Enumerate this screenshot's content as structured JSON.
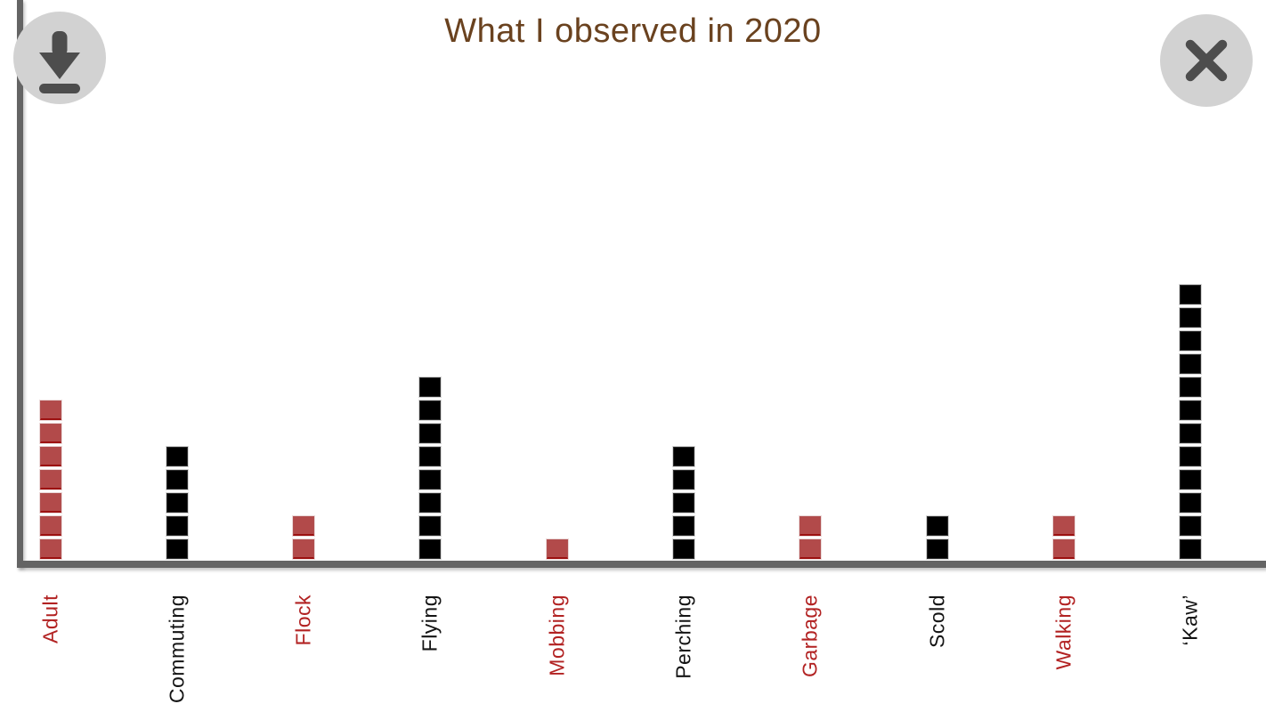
{
  "window": {
    "title": "What I observed in 2020"
  },
  "toolbar": {
    "download_icon": "download-arrow-into-tray",
    "close_icon": "x-cross",
    "button_bg": "#d2d2d2",
    "glyph_color": "#4d4d4d"
  },
  "colors": {
    "title_text": "#6a421f",
    "axis": "#646464",
    "red_block_fill": "#b24a4a",
    "red_block_border": "#9c1111",
    "black_block_fill": "#000000",
    "red_label": "#b22222",
    "black_label": "#141414",
    "background": "#ffffff"
  },
  "chart_data": {
    "type": "bar",
    "subtype": "unit-square-columns (each square = 1 observation)",
    "title": "What I observed in 2020",
    "categories": [
      "Adult",
      "Commuting",
      "Flock",
      "Flying",
      "Mobbing",
      "Perching",
      "Garbage",
      "Scold",
      "Walking",
      "‘Kaw’"
    ],
    "values": [
      7,
      5,
      2,
      8,
      1,
      5,
      2,
      2,
      2,
      12
    ],
    "series_colors": [
      "red",
      "black",
      "red",
      "black",
      "red",
      "black",
      "red",
      "black",
      "red",
      "black"
    ],
    "unit_value": 1,
    "xlabel": "",
    "ylabel": "",
    "ylim": [
      0,
      12
    ],
    "grid": false,
    "legend": null,
    "tick_label_rotation_deg": 90
  }
}
